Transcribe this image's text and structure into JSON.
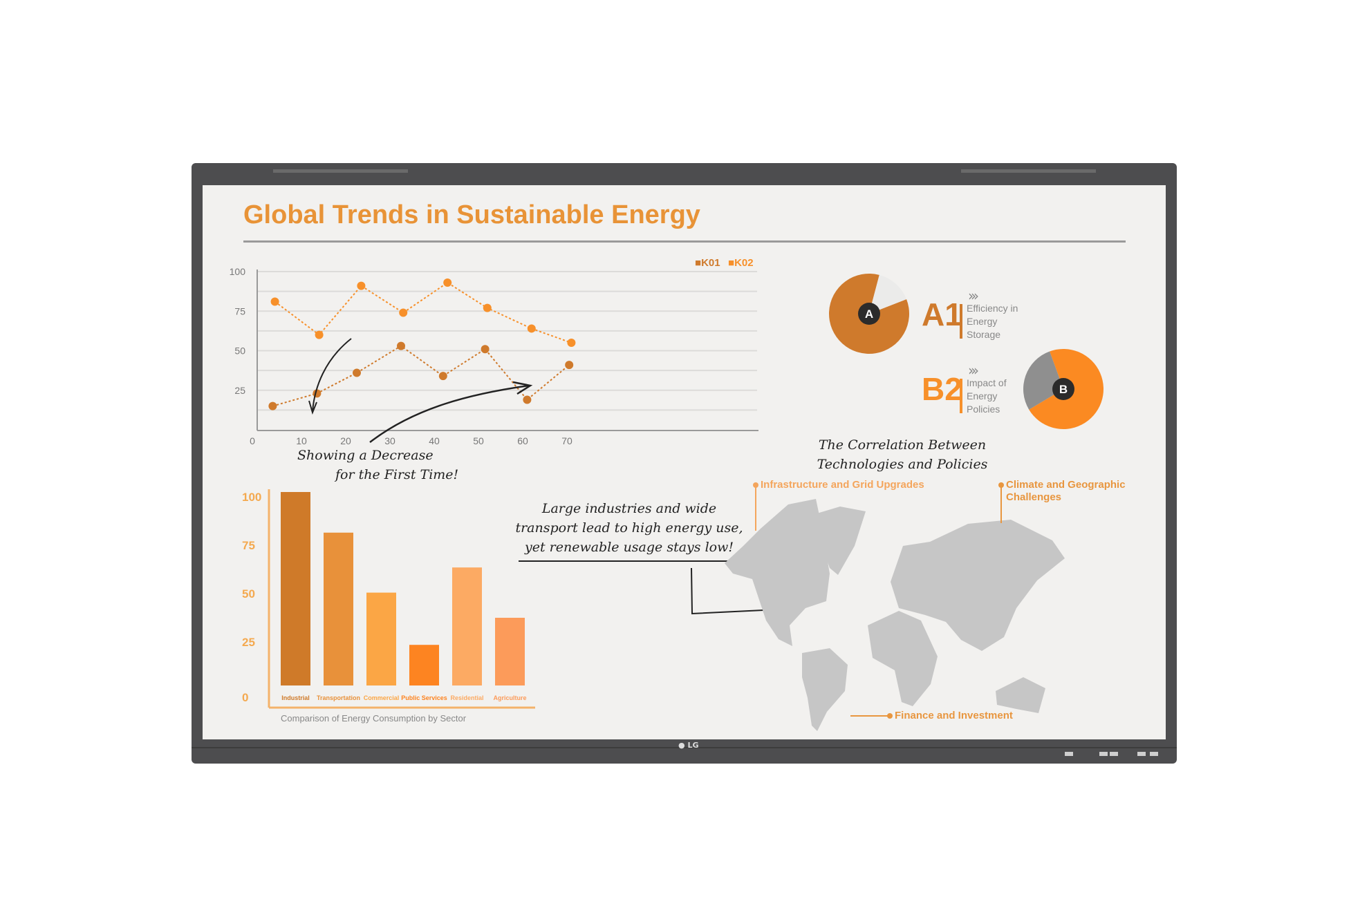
{
  "title": "Global Trends in Sustainable Energy",
  "brand": "LG",
  "colors": {
    "accent": "#e89337",
    "k01": "#cf7a2c",
    "k02": "#f7902a",
    "map": "#c6c6c6",
    "bezel": "#4d4d4f",
    "screen": "#f2f1ef"
  },
  "chart_data": [
    {
      "type": "line",
      "legend": [
        "K01",
        "K02"
      ],
      "legend_position": "top-right",
      "xticks": [
        "0",
        "10",
        "20",
        "30",
        "40",
        "50",
        "60",
        "70"
      ],
      "yticks": [
        "100",
        "75",
        "50",
        "25"
      ],
      "xlim": [
        0,
        70
      ],
      "ylim": [
        0,
        100
      ],
      "grid": true,
      "series": [
        {
          "name": "K01",
          "x": [
            3.5,
            13.5,
            22.5,
            32.5,
            42,
            51.5,
            61,
            70.5
          ],
          "y": [
            15,
            23,
            36,
            53,
            34,
            51,
            19,
            41
          ]
        },
        {
          "name": "K02",
          "x": [
            4,
            14,
            23.5,
            33,
            43,
            52,
            62,
            71
          ],
          "y": [
            81,
            60,
            91,
            74,
            93,
            77,
            64,
            55
          ]
        }
      ],
      "annotation": [
        "Showing a Decrease",
        "for the First Time!"
      ]
    },
    {
      "type": "bar",
      "categories": [
        "Industrial",
        "Transportation",
        "Commercial",
        "Public Services",
        "Residential",
        "Agriculture"
      ],
      "values": [
        100,
        79,
        48,
        21,
        61,
        35
      ],
      "bar_colors": [
        "#cf7a29",
        "#e8913a",
        "#fba645",
        "#fd8421",
        "#fcaa63",
        "#fc9b5a"
      ],
      "yticks": [
        "100",
        "75",
        "50",
        "25",
        "0"
      ],
      "ylim": [
        0,
        100
      ],
      "xlabel": "Comparison of Energy Consumption by Sector"
    },
    {
      "type": "pie",
      "label": "A",
      "values": [
        85,
        15
      ],
      "colors": [
        "#cf7a2c",
        "#ebebea"
      ]
    },
    {
      "type": "pie",
      "label": "B",
      "values": [
        72,
        28
      ],
      "colors": [
        "#fb8a22",
        "#8f8f8f"
      ]
    }
  ],
  "kpis": [
    {
      "code": "A1",
      "chevrons": "›››",
      "lines": [
        "Efficiency in",
        "Energy",
        "Storage"
      ]
    },
    {
      "code": "B2",
      "chevrons": "›››",
      "lines": [
        "Impact of",
        "Energy",
        "Policies"
      ]
    }
  ],
  "note_middle": [
    "Large industries and wide",
    "transport lead to high energy use,",
    "yet renewable usage stays low!"
  ],
  "map": {
    "heading": [
      "The Correlation Between",
      "Technologies and Policies"
    ],
    "labels": {
      "infrastructure": "Infrastructure and Grid Upgrades",
      "climate": [
        "Climate and Geographic",
        "Challenges"
      ],
      "finance": "Finance and Investment"
    }
  }
}
